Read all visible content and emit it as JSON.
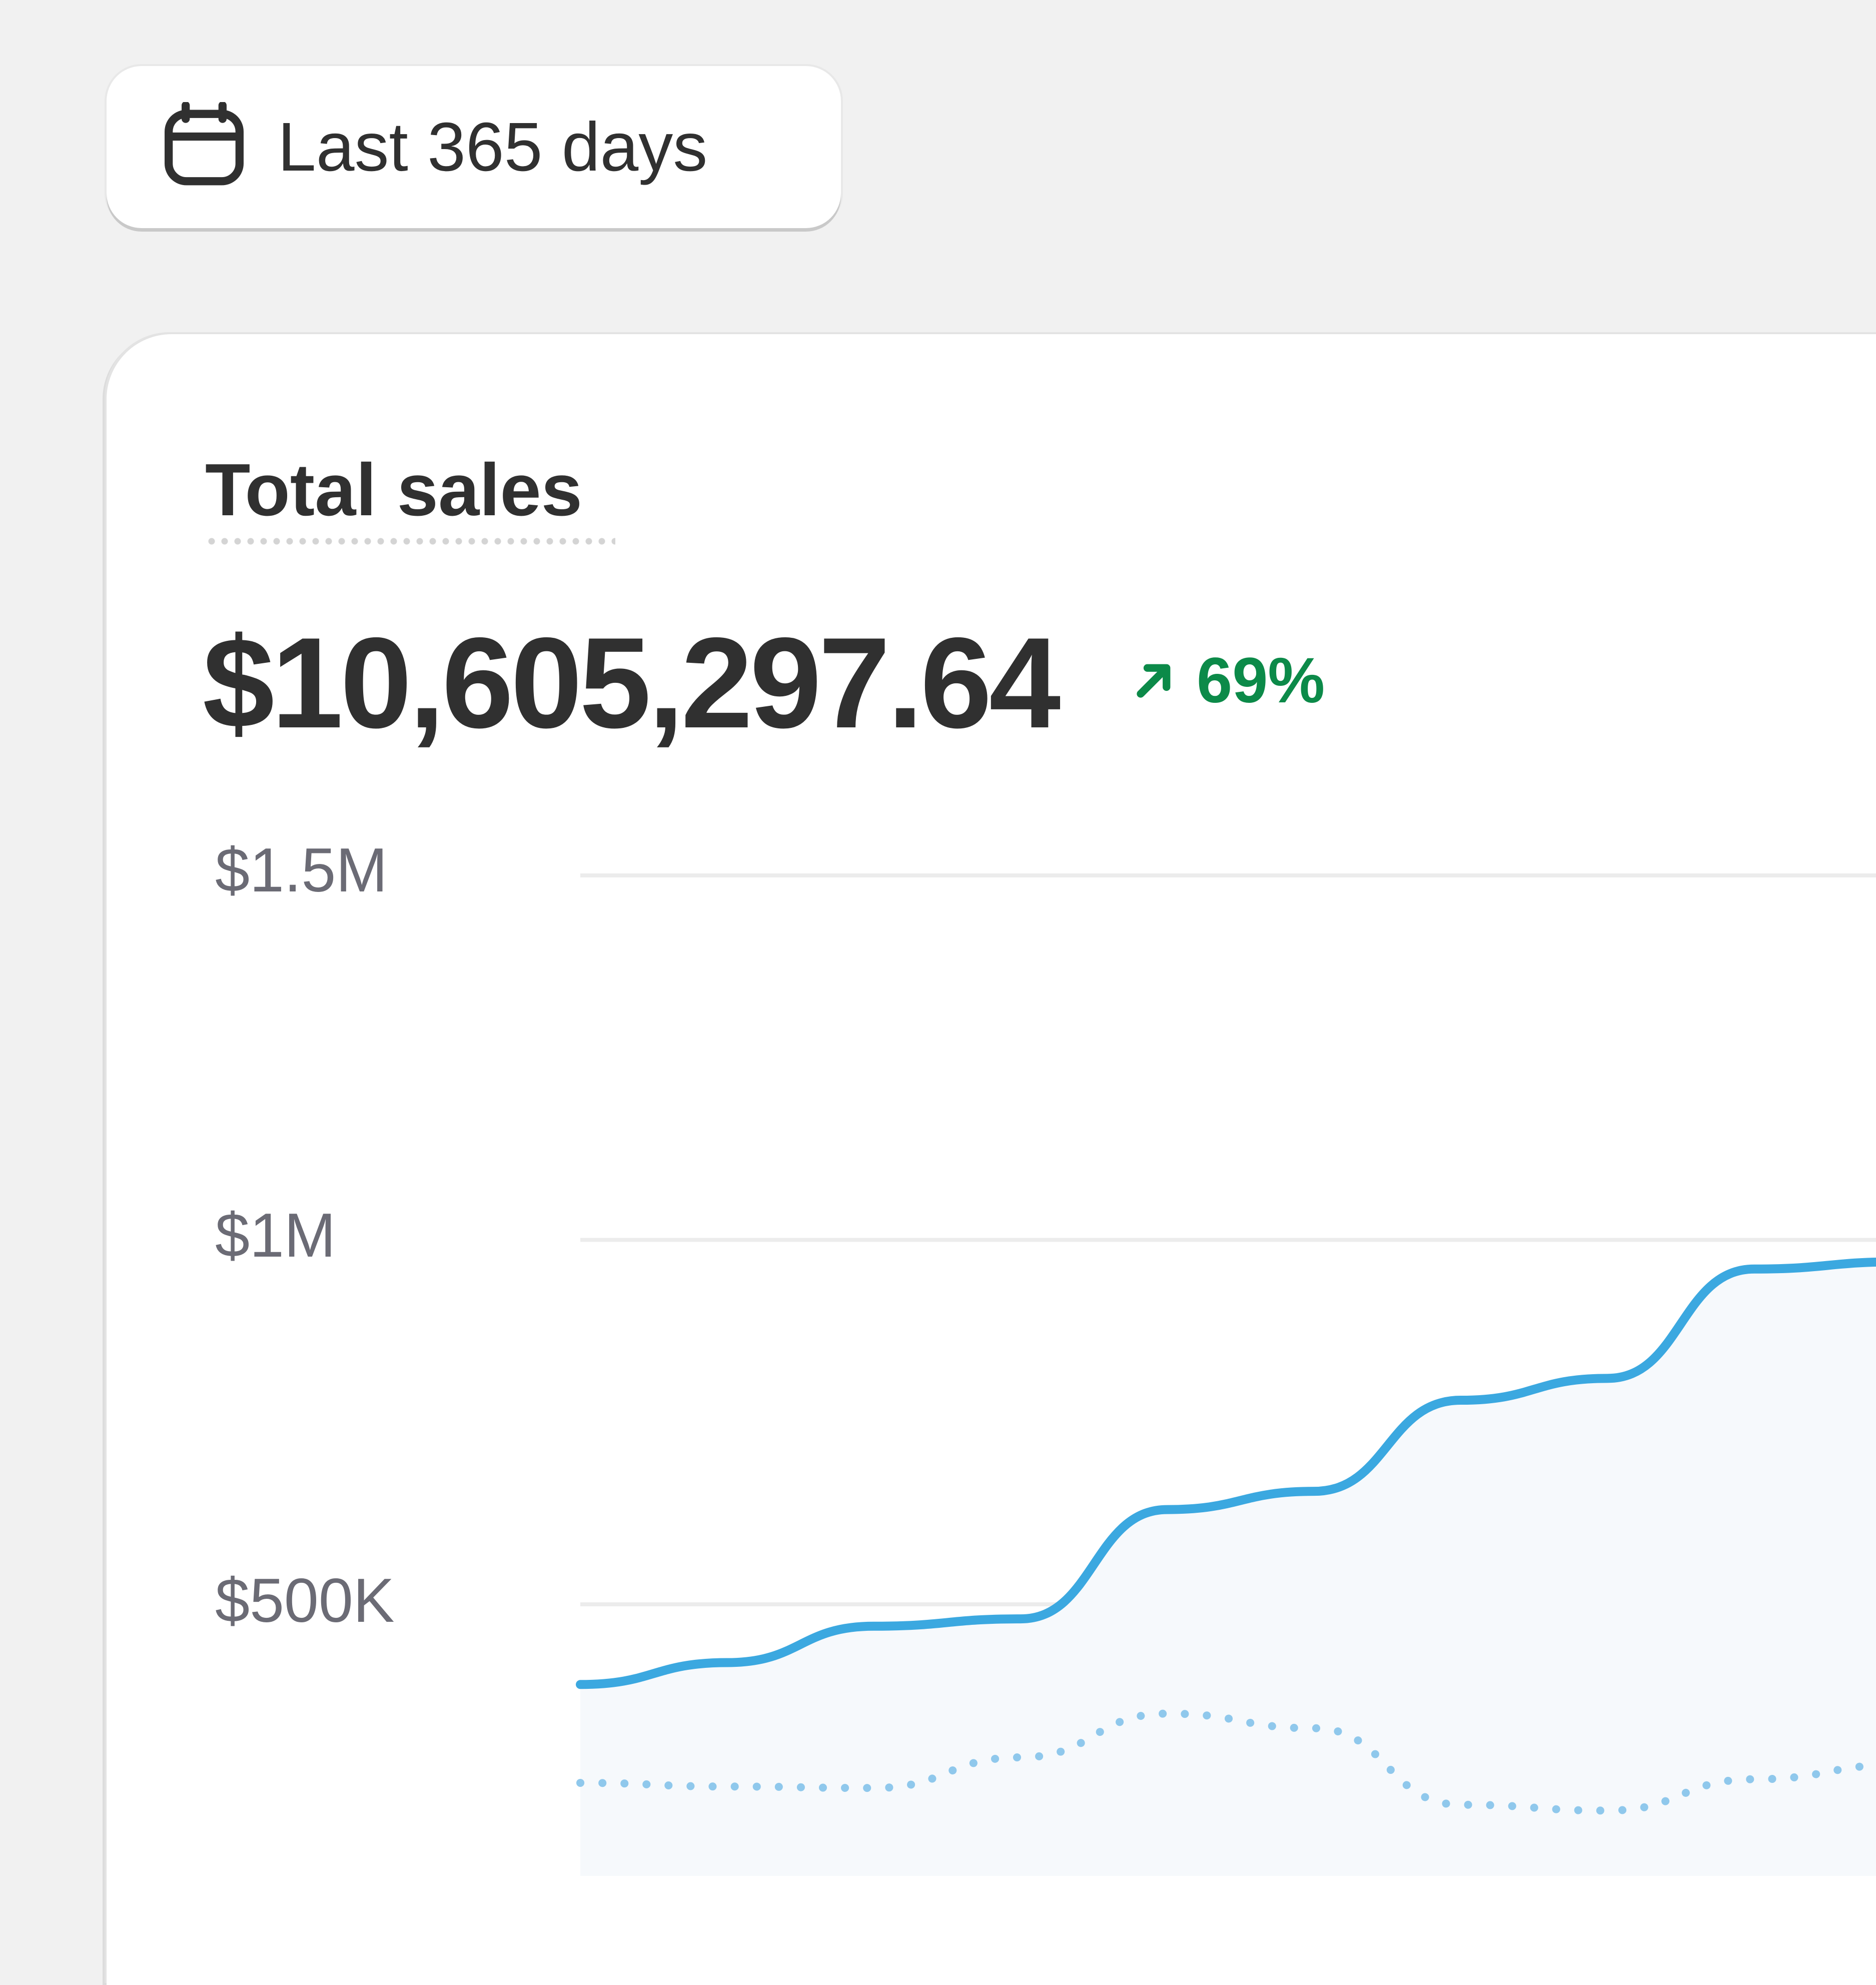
{
  "filter": {
    "date_range_label": "Last 365 days",
    "icon": "calendar-icon"
  },
  "metric": {
    "title": "Total sales",
    "value": "$10,605,297.64",
    "change": "69%",
    "change_direction": "up",
    "change_color": "#0c8a49"
  },
  "chart_data": {
    "type": "line",
    "title": "",
    "xlabel": "",
    "ylabel": "",
    "yticks": [
      "$1.5M",
      "$1M",
      "$500K"
    ],
    "ylim": [
      0,
      1500000
    ],
    "grid": true,
    "x": [
      0,
      1,
      2,
      3,
      4,
      5,
      6,
      7,
      8,
      9
    ],
    "series": [
      {
        "style": "solid",
        "color": "#3ba8e0",
        "fill": "#f6f9fc",
        "values": [
          390000,
          420000,
          470000,
          480000,
          630000,
          655000,
          780000,
          810000,
          960000,
          970000
        ]
      },
      {
        "style": "dotted",
        "color": "#8fc8ec",
        "values": [
          255000,
          250000,
          248000,
          290000,
          350000,
          330000,
          225000,
          217000,
          260000,
          280000
        ]
      }
    ]
  }
}
